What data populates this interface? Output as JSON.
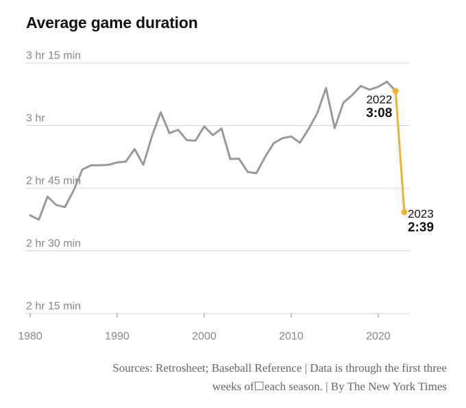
{
  "title": "Average game duration",
  "source": {
    "line1": "Sources: Retrosheet; Baseball Reference | Data is through the first three",
    "line2": "weeks of☐each season. | By The New York Times"
  },
  "colors": {
    "history": "#999999",
    "highlight": "#f2b230",
    "grid": "#d4d4d4",
    "axis": "#888888"
  },
  "chart_data": {
    "type": "line",
    "title": "Average game duration",
    "xlabel": "",
    "ylabel": "",
    "unit": "minutes",
    "ylim": [
      135,
      195
    ],
    "xlim": [
      1980,
      2023
    ],
    "y_ticks": [
      {
        "value": 195,
        "label": "3 hr 15 min"
      },
      {
        "value": 180,
        "label": "3 hr"
      },
      {
        "value": 165,
        "label": "2 hr 45 min"
      },
      {
        "value": 150,
        "label": "2 hr 30 min"
      },
      {
        "value": 135,
        "label": "2 hr 15 min"
      }
    ],
    "x_ticks": [
      1980,
      1990,
      2000,
      2010,
      2020
    ],
    "grid": true,
    "series": [
      {
        "color": "#999999",
        "points": [
          [
            1980,
            158.5
          ],
          [
            1981,
            157.5
          ],
          [
            1982,
            163.0
          ],
          [
            1983,
            161.0
          ],
          [
            1984,
            160.5
          ],
          [
            1985,
            164.5
          ],
          [
            1986,
            169.5
          ],
          [
            1987,
            170.5
          ],
          [
            1988,
            170.5
          ],
          [
            1989,
            170.6
          ],
          [
            1990,
            171.2
          ],
          [
            1991,
            171.4
          ],
          [
            1992,
            174.4
          ],
          [
            1993,
            170.6
          ],
          [
            1994,
            177.5
          ],
          [
            1995,
            183.2
          ],
          [
            1996,
            178.2
          ],
          [
            1997,
            179.0
          ],
          [
            1998,
            176.5
          ],
          [
            1999,
            176.4
          ],
          [
            2000,
            179.8
          ],
          [
            2001,
            177.7
          ],
          [
            2002,
            179.3
          ],
          [
            2003,
            172.0
          ],
          [
            2004,
            172.1
          ],
          [
            2005,
            168.9
          ],
          [
            2006,
            168.6
          ],
          [
            2007,
            172.5
          ],
          [
            2008,
            175.8
          ],
          [
            2009,
            177.0
          ],
          [
            2010,
            177.4
          ],
          [
            2011,
            175.9
          ],
          [
            2012,
            179.2
          ],
          [
            2013,
            183.0
          ],
          [
            2014,
            189.0
          ],
          [
            2015,
            179.4
          ],
          [
            2016,
            185.5
          ],
          [
            2017,
            187.3
          ],
          [
            2018,
            189.5
          ],
          [
            2019,
            188.6
          ],
          [
            2020,
            189.3
          ],
          [
            2021,
            190.5
          ],
          [
            2022,
            188.3
          ]
        ]
      },
      {
        "color": "#f2b230",
        "points": [
          [
            2022,
            188.3
          ],
          [
            2023,
            159.3
          ]
        ]
      }
    ],
    "annotations": [
      {
        "year": "2022",
        "value": "3:08"
      },
      {
        "year": "2023",
        "value": "2:39"
      }
    ]
  }
}
